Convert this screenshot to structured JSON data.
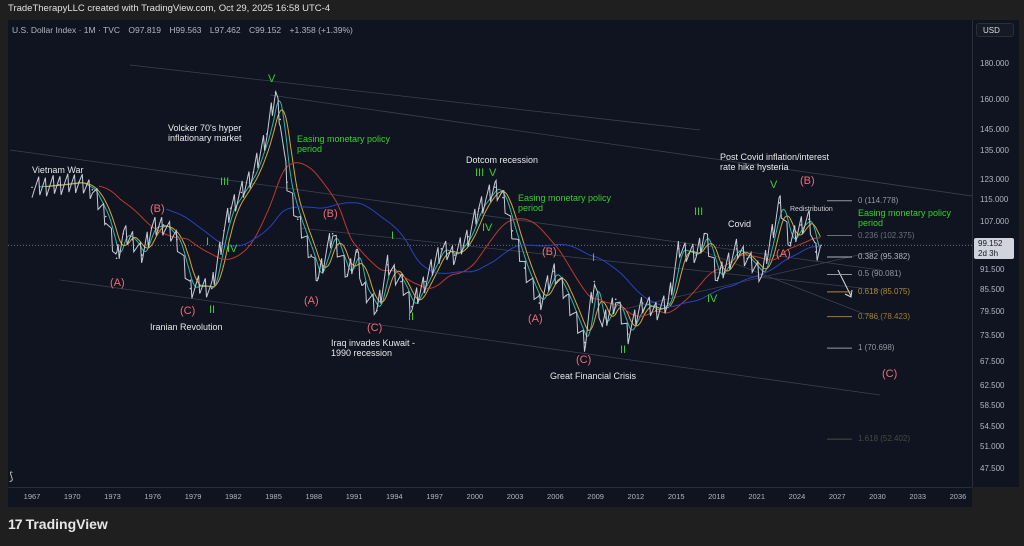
{
  "credit": "TradeTherapyLLC created with TradingView.com, Oct 29, 2025 16:58 UTC-4",
  "legend": {
    "symbol": "U.S. Dollar Index · 1M · TVC",
    "open": "O97.819",
    "high": "H99.563",
    "low": "L97.462",
    "close": "C99.152",
    "change": "+1.358 (+1.39%)"
  },
  "currency": "USD",
  "current_price": {
    "value": "99.152",
    "countdown": "2d 3h"
  },
  "brand": "TradingView",
  "colors": {
    "background": "#0f1420",
    "price": "#c8ccd6",
    "wave_label_red": "#f06b73",
    "wave_label_green": "#39d02c",
    "ma_fast": "#2bb8a6",
    "ma_mid": "#d8a634",
    "ma_slow": "#c0392b",
    "ma_long": "#2742c4"
  },
  "chart_data": {
    "type": "line",
    "title": "",
    "xlabel": "",
    "ylabel": "",
    "y_scale": "log",
    "ylim": [
      45,
      190
    ],
    "xlim": [
      1965.5,
      2037.5
    ],
    "grid": false,
    "x_ticks": [
      "1967",
      "1970",
      "1973",
      "1976",
      "1979",
      "1982",
      "1985",
      "1988",
      "1991",
      "1994",
      "1997",
      "2000",
      "2003",
      "2006",
      "2009",
      "2012",
      "2015",
      "2018",
      "2021",
      "2024",
      "2027",
      "2030",
      "2033",
      "2036"
    ],
    "y_ticks": [
      "180.000",
      "160.000",
      "145.000",
      "135.000",
      "123.000",
      "115.000",
      "107.000",
      "91.500",
      "85.500",
      "79.500",
      "73.500",
      "67.500",
      "62.500",
      "58.500",
      "54.500",
      "51.000",
      "47.500"
    ],
    "series": [
      {
        "x": [
          1967,
          1969,
          1970.5,
          1971.5,
          1972.5,
          1973.3,
          1973.8,
          1974.5,
          1975.2,
          1975.9,
          1976.8,
          1977.8,
          1978.8,
          1979.5,
          1980.4,
          1981.3,
          1981.8,
          1982.6,
          1983.5,
          1984.5,
          1985.15,
          1985.5,
          1986,
          1986.8,
          1987.8,
          1988.3,
          1989.4,
          1990.5,
          1991.2,
          1991.6,
          1992.7,
          1993.5,
          1994.5,
          1995.3,
          1996.3,
          1997.5,
          1998.5,
          1999.5,
          2000.3,
          2001.5,
          2002.1,
          2002.8,
          2003.7,
          2004.8,
          2005.9,
          2006.8,
          2008.2,
          2008.9,
          2009.5,
          2010.5,
          2011.4,
          2012.5,
          2013.5,
          2014.4,
          2015.2,
          2016.5,
          2017.1,
          2018.1,
          2019.5,
          2020.3,
          2021.4,
          2022.7,
          2023.5,
          2024.3,
          2024.9,
          2025.4,
          2025.8
        ],
        "y": [
          120,
          121,
          122,
          119,
          109,
          95,
          103,
          101,
          96,
          105,
          106,
          101,
          86,
          87,
          86,
          104,
          112,
          118,
          126,
          143,
          164,
          150,
          122,
          108,
          96,
          89,
          103,
          90,
          97,
          87,
          80,
          93,
          88,
          81,
          88,
          98,
          96,
          102,
          112,
          120,
          116,
          104,
          92,
          82,
          91,
          84,
          72,
          88,
          76,
          83,
          74,
          82,
          80,
          82,
          98,
          96,
          103,
          89,
          98,
          95,
          90,
          114,
          100,
          106,
          108,
          97,
          99.152
        ]
      }
    ],
    "moving_averages": [
      {
        "period": 6
      },
      {
        "period": 12
      },
      {
        "period": 20
      },
      {
        "period": 40
      }
    ],
    "fibonacci": [
      {
        "ratio": "0",
        "price": 114.778,
        "label": "0 (114.778)",
        "color": "#9598a1"
      },
      {
        "ratio": "0.236",
        "price": 102.375,
        "label": "0.236 (102.375)",
        "color": "#6b6f78"
      },
      {
        "ratio": "0.382",
        "price": 95.382,
        "label": "0.382 (95.382)",
        "color": "#b2b5be"
      },
      {
        "ratio": "0.5",
        "price": 90.081,
        "label": "0.5 (90.081)",
        "color": "#9598a1"
      },
      {
        "ratio": "0.618",
        "price": 85.075,
        "label": "0.618 (85.075)",
        "color": "#b08b36"
      },
      {
        "ratio": "0.786",
        "price": 78.423,
        "label": "0.786 (78.423)",
        "color": "#a07d30"
      },
      {
        "ratio": "1",
        "price": 70.698,
        "label": "1 (70.698)",
        "color": "#9598a1"
      },
      {
        "ratio": "1.618",
        "price": 52.402,
        "label": "1.618 (52.402)",
        "color": "#4a4a40"
      }
    ],
    "annotations": [
      {
        "text": "Vietnam War",
        "kind": "white"
      },
      {
        "text": "(A)",
        "kind": "red"
      },
      {
        "text": "(B)",
        "kind": "red"
      },
      {
        "text": "(C)",
        "kind": "red"
      },
      {
        "text": "Iranian Revolution",
        "kind": "white"
      },
      {
        "text": "I",
        "kind": "green"
      },
      {
        "text": "II",
        "kind": "green"
      },
      {
        "text": "III",
        "kind": "green"
      },
      {
        "text": "IV",
        "kind": "green"
      },
      {
        "text": "V",
        "kind": "green"
      },
      {
        "text": "Volcker 70's hyper inflationary market",
        "kind": "white"
      },
      {
        "text": "Easing monetary policy period",
        "kind": "greent"
      },
      {
        "text": "(A)",
        "kind": "red"
      },
      {
        "text": "(B)",
        "kind": "red"
      },
      {
        "text": "(C)",
        "kind": "red"
      },
      {
        "text": "I",
        "kind": "green"
      },
      {
        "text": "II",
        "kind": "green"
      },
      {
        "text": "Iraq invades Kuwait - 1990 recession",
        "kind": "white"
      },
      {
        "text": "Dotcom recession",
        "kind": "white"
      },
      {
        "text": "III",
        "kind": "green"
      },
      {
        "text": "V",
        "kind": "green"
      },
      {
        "text": "IV",
        "kind": "green"
      },
      {
        "text": "Easing monetary policy period",
        "kind": "greent"
      },
      {
        "text": "(A)",
        "kind": "red"
      },
      {
        "text": "(B)",
        "kind": "red"
      },
      {
        "text": "(C)",
        "kind": "red"
      },
      {
        "text": "I",
        "kind": "green"
      },
      {
        "text": "II",
        "kind": "green"
      },
      {
        "text": "Great Financial Crisis",
        "kind": "white"
      },
      {
        "text": "III",
        "kind": "green"
      },
      {
        "text": "IV",
        "kind": "green"
      },
      {
        "text": "Covid",
        "kind": "white"
      },
      {
        "text": "V",
        "kind": "green"
      },
      {
        "text": "Post Covid inflation/interest rate hike hysteria",
        "kind": "white"
      },
      {
        "text": "(B)",
        "kind": "red"
      },
      {
        "text": "Redistribution",
        "kind": "small"
      },
      {
        "text": "(A)",
        "kind": "red"
      },
      {
        "text": "Easing monetary policy period",
        "kind": "greent"
      },
      {
        "text": "(C)",
        "kind": "red"
      }
    ]
  }
}
